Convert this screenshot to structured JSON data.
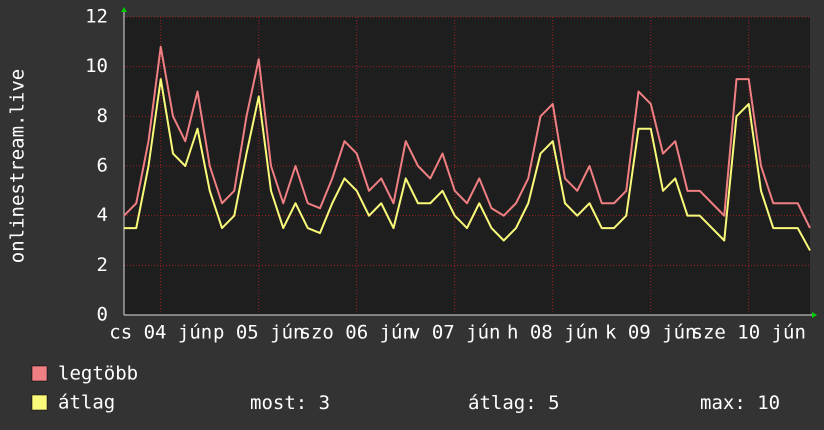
{
  "chart_data": {
    "type": "line",
    "ylabel": "onlinestream.live",
    "x": [
      0,
      3,
      6,
      9,
      12,
      15,
      18,
      21,
      24,
      27,
      30,
      33,
      36,
      39,
      42,
      45,
      48,
      51,
      54,
      57,
      60,
      63,
      66,
      69,
      72,
      75,
      78,
      81,
      84,
      87,
      90,
      93,
      96,
      99,
      102,
      105,
      108,
      111,
      114,
      117,
      120,
      123,
      126,
      129,
      132,
      135,
      138,
      141,
      144,
      147,
      150,
      153,
      156,
      159,
      162,
      165,
      168
    ],
    "xlim": [
      0,
      168
    ],
    "xticks": [
      {
        "value": 9,
        "label": "cs 04 jún"
      },
      {
        "value": 33,
        "label": "p 05 jún"
      },
      {
        "value": 57,
        "label": "szo 06 jún"
      },
      {
        "value": 81,
        "label": "v 07 jún"
      },
      {
        "value": 105,
        "label": "h 08 jún"
      },
      {
        "value": 129,
        "label": "k 09 jún"
      },
      {
        "value": 153,
        "label": "sze 10 jún"
      }
    ],
    "ylim": [
      0,
      12
    ],
    "yticks": [
      0,
      2,
      4,
      6,
      8,
      10,
      12
    ],
    "grid": true,
    "series": [
      {
        "name": "legtöbb",
        "color": "#f07f83",
        "values": [
          4,
          4.5,
          7,
          10.8,
          8,
          7,
          9,
          6,
          4.5,
          5,
          8,
          10.3,
          6,
          4.5,
          6,
          4.5,
          4.3,
          5.5,
          7,
          6.5,
          5,
          5.5,
          4.5,
          7,
          6,
          5.5,
          6.5,
          5,
          4.5,
          5.5,
          4.3,
          4,
          4.5,
          5.5,
          8,
          8.5,
          5.5,
          5,
          6,
          4.5,
          4.5,
          5,
          9,
          8.5,
          6.5,
          7,
          5,
          5,
          4.5,
          4,
          9.5,
          9.5,
          6,
          4.5,
          4.5,
          4.5,
          3.5
        ]
      },
      {
        "name": "átlag",
        "color": "#fafa7a",
        "values": [
          3.5,
          3.5,
          6,
          9.5,
          6.5,
          6,
          7.5,
          5,
          3.5,
          4,
          6.5,
          8.8,
          5,
          3.5,
          4.5,
          3.5,
          3.3,
          4.5,
          5.5,
          5,
          4,
          4.5,
          3.5,
          5.5,
          4.5,
          4.5,
          5,
          4,
          3.5,
          4.5,
          3.5,
          3,
          3.5,
          4.5,
          6.5,
          7,
          4.5,
          4,
          4.5,
          3.5,
          3.5,
          4,
          7.5,
          7.5,
          5,
          5.5,
          4,
          4,
          3.5,
          3,
          8,
          8.5,
          5,
          3.5,
          3.5,
          3.5,
          2.6
        ]
      }
    ],
    "stats": [
      {
        "label": "most:",
        "value": 3
      },
      {
        "label": "átlag:",
        "value": 5
      },
      {
        "label": "max:",
        "value": 10
      }
    ]
  }
}
